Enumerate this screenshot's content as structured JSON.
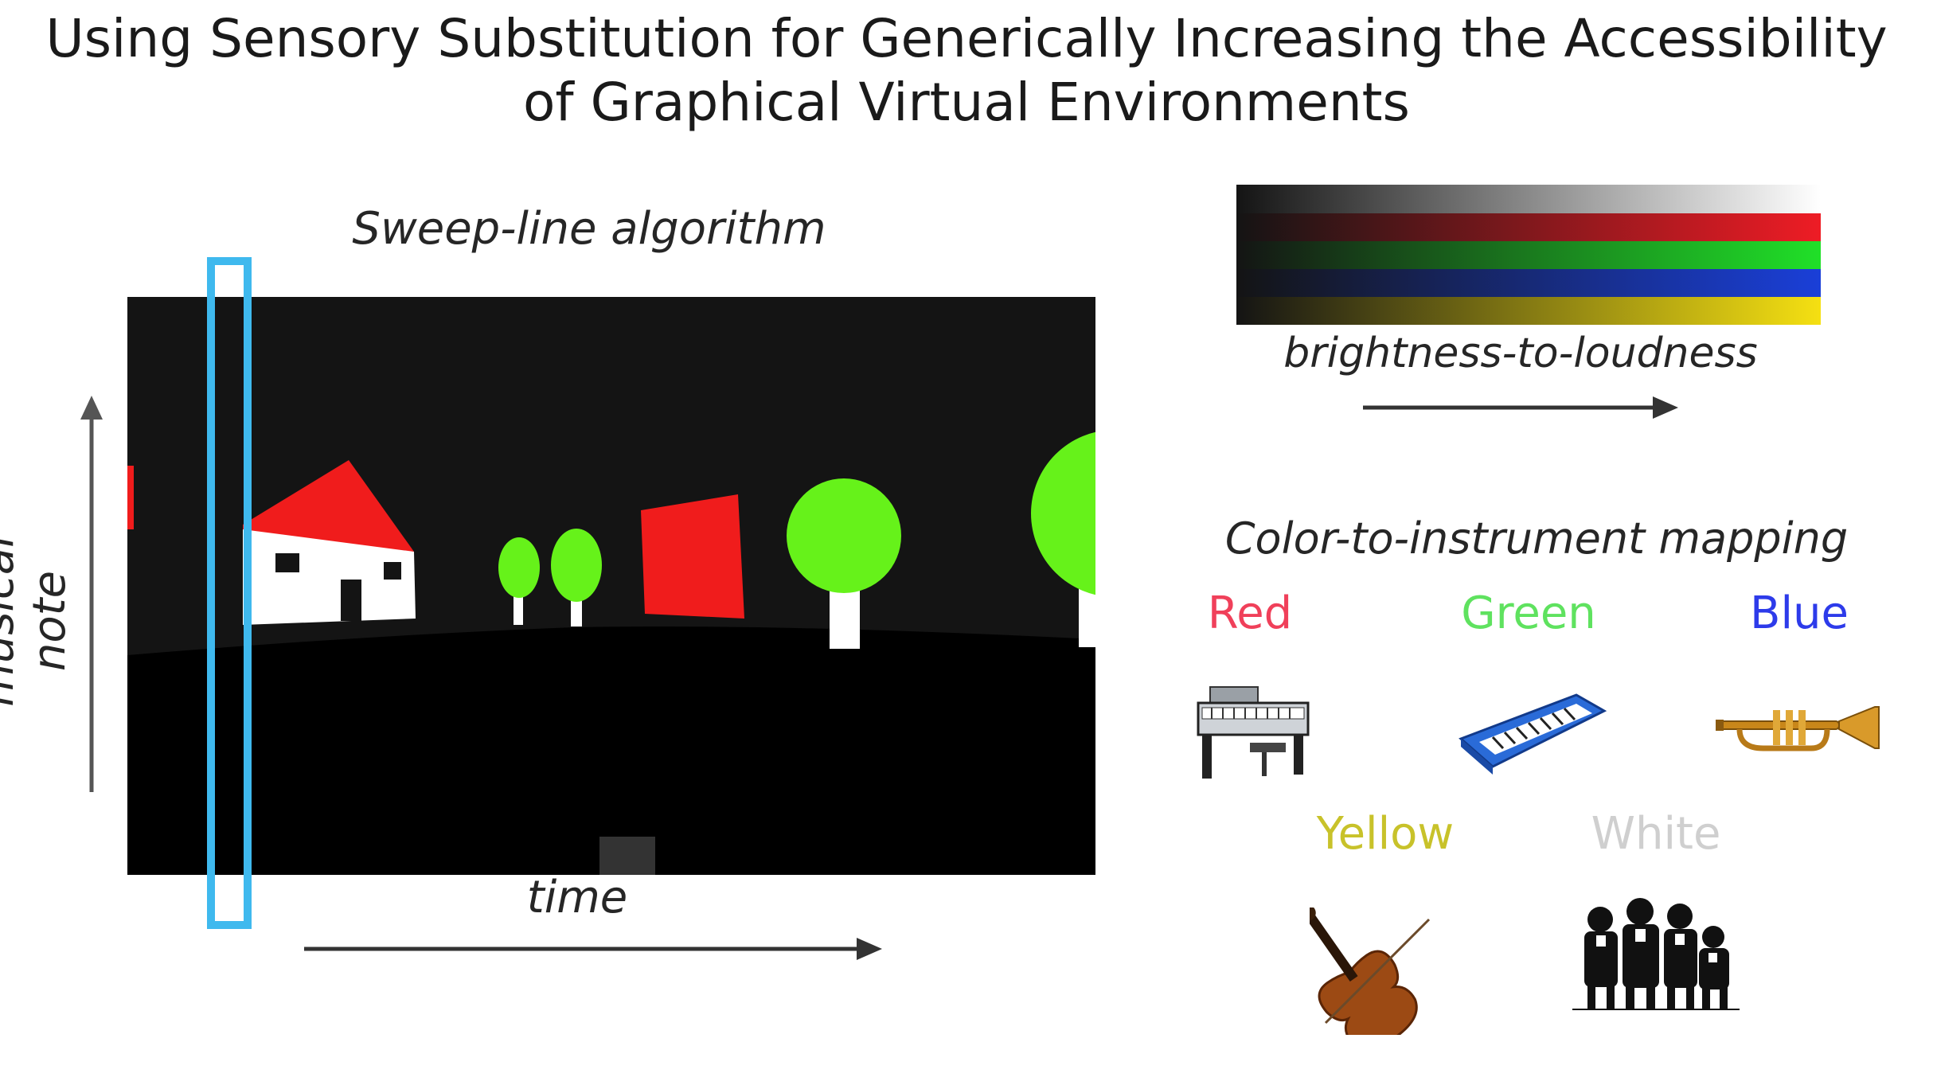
{
  "title": {
    "line1": "Using Sensory Substitution for Generically Increasing the Accessibility",
    "line2": "of Graphical Virtual Environments"
  },
  "sweep": {
    "label": "Sweep-line algorithm",
    "x_axis_label": "time",
    "y_axis_label": "musical note",
    "window_color": "#3fb9ee"
  },
  "scene": {
    "background": "#141414",
    "colors": {
      "red": "#f01c1c",
      "green": "#66f21a",
      "white": "#ffffff"
    },
    "objects": [
      "house",
      "small-tree",
      "small-tree",
      "red-block",
      "tree",
      "tree"
    ]
  },
  "brightness": {
    "label": "brightness-to-loudness",
    "bars": [
      {
        "name": "white",
        "color": "#ffffff"
      },
      {
        "name": "red",
        "color": "#ee1c25"
      },
      {
        "name": "green",
        "color": "#20e028"
      },
      {
        "name": "blue",
        "color": "#1a3fd8"
      },
      {
        "name": "yellow",
        "color": "#f5e012"
      }
    ]
  },
  "mapping": {
    "label": "Color-to-instrument mapping",
    "items": [
      {
        "color_name": "Red",
        "text_color": "#f0405a",
        "instrument_icon": "piano-icon"
      },
      {
        "color_name": "Green",
        "text_color": "#5fe25f",
        "instrument_icon": "synth-keyboard-icon"
      },
      {
        "color_name": "Blue",
        "text_color": "#2d3bea",
        "instrument_icon": "trumpet-icon"
      },
      {
        "color_name": "Yellow",
        "text_color": "#c8c22a",
        "instrument_icon": "violin-icon"
      },
      {
        "color_name": "White",
        "text_color": "#cfcfcf",
        "instrument_icon": "choir-icon"
      }
    ]
  }
}
